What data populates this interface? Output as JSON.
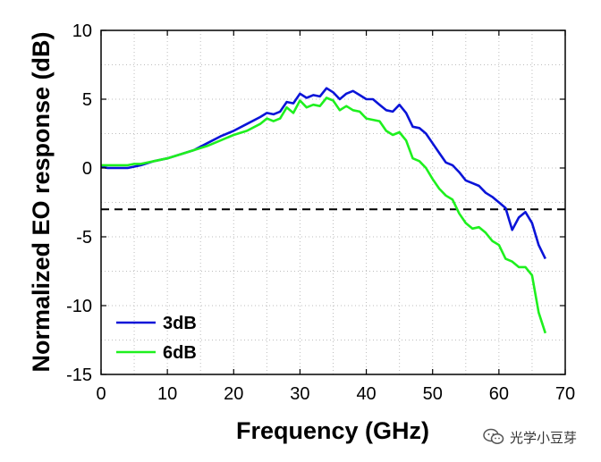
{
  "chart_data": {
    "type": "line",
    "title": "",
    "xlabel": "Frequency (GHz)",
    "ylabel": "Normalized EO response (dB)",
    "xlim": [
      0,
      70
    ],
    "ylim": [
      -15,
      10
    ],
    "xticks": [
      "0",
      "10",
      "20",
      "30",
      "40",
      "50",
      "60",
      "70"
    ],
    "yticks": [
      "10",
      "5",
      "0",
      "-5",
      "-10",
      "-15"
    ],
    "grid": "dotted",
    "legend_position": "bottom-left",
    "reference_line": {
      "y": -3,
      "style": "dashed",
      "color": "#000000"
    },
    "series": [
      {
        "name": "3dB",
        "color": "#0a14d8",
        "x": [
          0,
          1,
          2,
          4,
          5,
          6,
          8,
          10,
          12,
          14,
          16,
          18,
          20,
          22,
          24,
          25,
          26,
          27,
          28,
          29,
          30,
          31,
          32,
          33,
          34,
          35,
          36,
          37,
          38,
          39,
          40,
          41,
          42,
          43,
          44,
          45,
          46,
          47,
          48,
          49,
          50,
          51,
          52,
          53,
          54,
          55,
          56,
          57,
          58,
          59,
          60,
          61,
          62,
          63,
          64,
          65,
          66,
          67
        ],
        "values": [
          0.1,
          0.0,
          0.0,
          0.0,
          0.1,
          0.2,
          0.5,
          0.7,
          1.0,
          1.3,
          1.8,
          2.3,
          2.7,
          3.2,
          3.7,
          4.0,
          3.9,
          4.1,
          4.8,
          4.7,
          5.4,
          5.1,
          5.3,
          5.2,
          5.8,
          5.5,
          5.0,
          5.4,
          5.6,
          5.3,
          5.0,
          5.0,
          4.6,
          4.2,
          4.1,
          4.6,
          4.0,
          3.0,
          2.9,
          2.5,
          1.8,
          1.1,
          0.4,
          0.2,
          -0.3,
          -0.9,
          -1.1,
          -1.3,
          -1.8,
          -2.1,
          -2.5,
          -2.9,
          -4.5,
          -3.6,
          -3.2,
          -4.0,
          -5.6,
          -6.6
        ]
      },
      {
        "name": "6dB",
        "color": "#1ef01e",
        "x": [
          0,
          1,
          2,
          4,
          5,
          6,
          8,
          10,
          12,
          14,
          16,
          18,
          20,
          22,
          24,
          25,
          26,
          27,
          28,
          29,
          30,
          31,
          32,
          33,
          34,
          35,
          36,
          37,
          38,
          39,
          40,
          41,
          42,
          43,
          44,
          45,
          46,
          47,
          48,
          49,
          50,
          51,
          52,
          53,
          54,
          55,
          56,
          57,
          58,
          59,
          60,
          61,
          62,
          63,
          64,
          65,
          66,
          67
        ],
        "values": [
          0.2,
          0.2,
          0.2,
          0.2,
          0.3,
          0.3,
          0.5,
          0.7,
          1.0,
          1.3,
          1.6,
          2.0,
          2.4,
          2.7,
          3.2,
          3.6,
          3.4,
          3.6,
          4.4,
          4.0,
          4.9,
          4.4,
          4.6,
          4.5,
          5.1,
          4.9,
          4.2,
          4.5,
          4.2,
          4.1,
          3.6,
          3.5,
          3.4,
          2.7,
          2.4,
          2.6,
          2.0,
          0.7,
          0.5,
          0.0,
          -0.8,
          -1.5,
          -2.0,
          -2.3,
          -3.3,
          -4.0,
          -4.4,
          -4.3,
          -4.7,
          -5.3,
          -5.6,
          -6.6,
          -6.8,
          -7.2,
          -7.2,
          -7.8,
          -10.5,
          -12.0
        ]
      }
    ]
  },
  "watermark": {
    "icon": "wechat-icon",
    "text": "光学小豆芽"
  }
}
